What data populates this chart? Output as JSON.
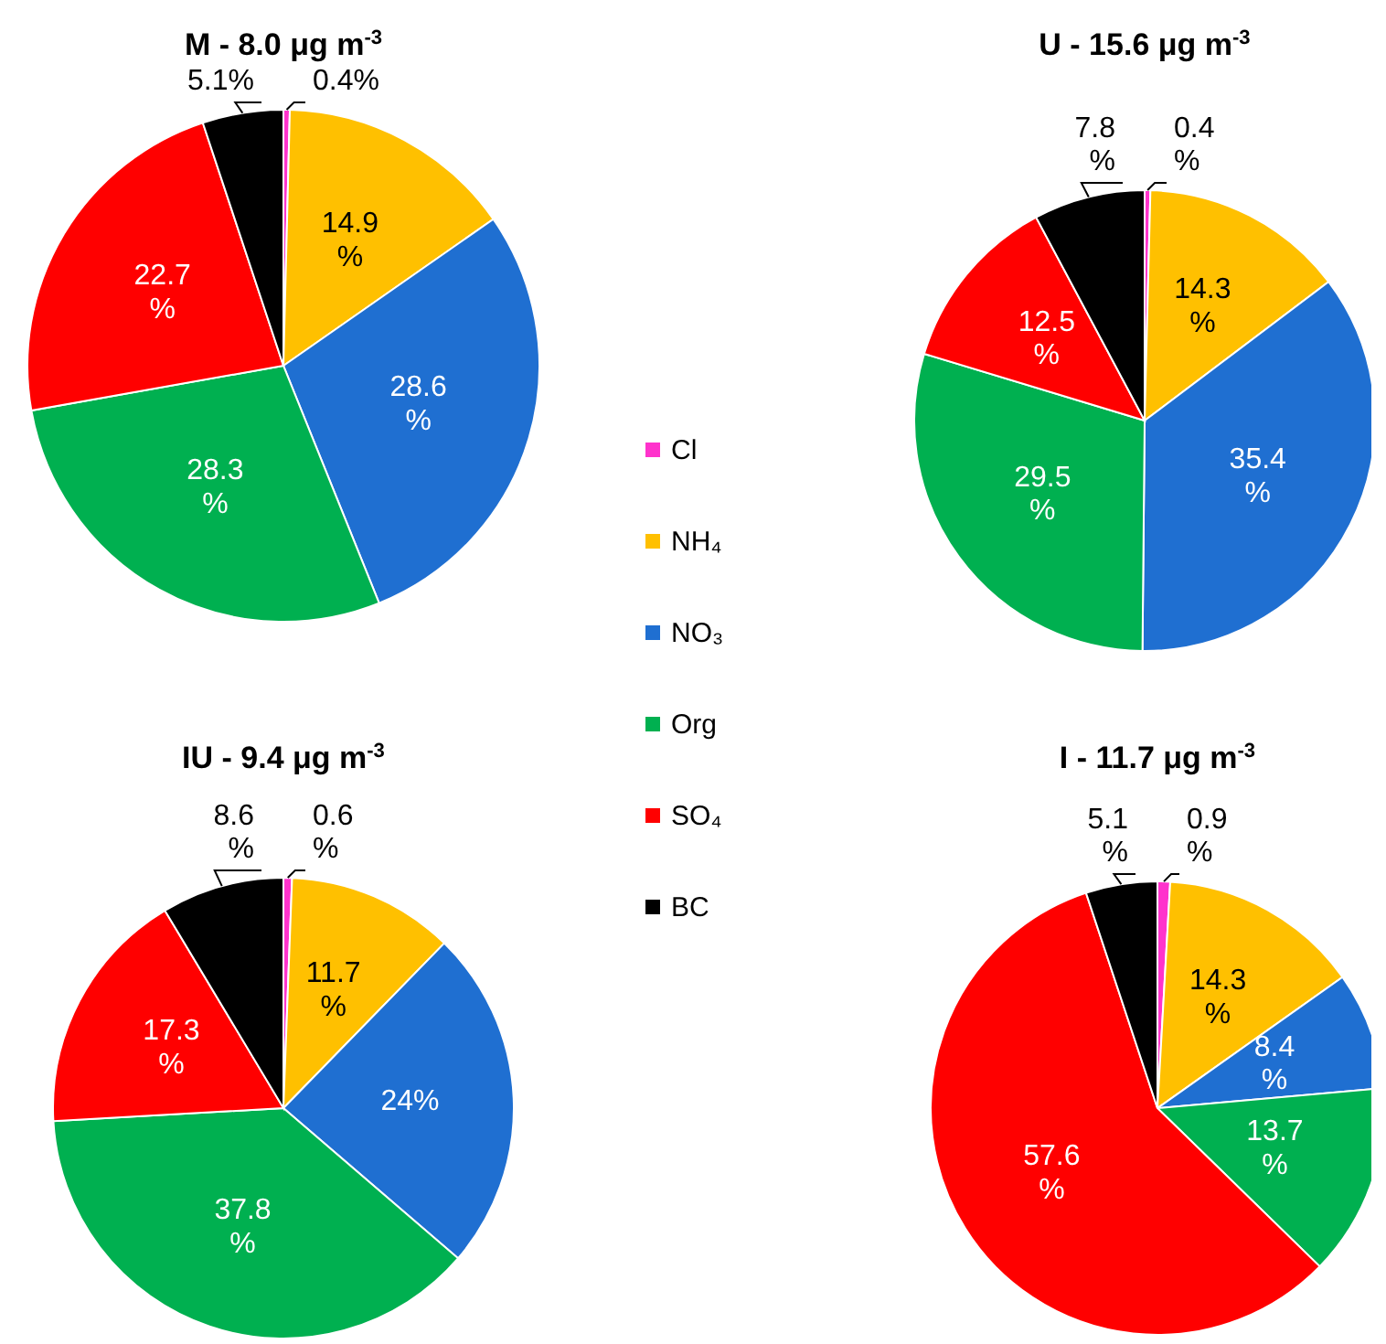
{
  "chart_data": [
    {
      "type": "pie",
      "title": "M - 8.0 μg m$^{-3}$",
      "categories": [
        "Cl",
        "NH₄",
        "NO₃",
        "Org",
        "SO₄",
        "BC"
      ],
      "values": [
        0.4,
        14.9,
        28.6,
        28.3,
        22.7,
        5.1
      ],
      "colors": [
        "#ff33cc",
        "#ffc000",
        "#1f6fd1",
        "#00b050",
        "#ff0000",
        "#000000"
      ],
      "value_labels": [
        "0.4%",
        "14.9 %",
        "28.6 %",
        "28.3 %",
        "22.7 %",
        "5.1%"
      ],
      "legend": "right"
    },
    {
      "type": "pie",
      "title": "U - 15.6 μg m$^{-3}$",
      "categories": [
        null,
        null,
        null,
        null,
        null,
        null
      ],
      "values": [
        0.4,
        14.3,
        35.4,
        29.5,
        12.5,
        7.8
      ],
      "colors": [
        "#ff33cc",
        "#ffc000",
        "#1f6fd1",
        "#00b050",
        "#ff0000",
        "#000000"
      ],
      "value_labels": [
        "0.4 %",
        "14.3 %",
        "35.4 %",
        "29.5 %",
        "12.5 %",
        "7.8 %"
      ]
    },
    {
      "type": "pie",
      "title": "IU - 9.4 μg m$^{-3}$",
      "categories": [
        null,
        null,
        null,
        null,
        null,
        null
      ],
      "values": [
        0.6,
        11.7,
        24,
        37.8,
        17.3,
        8.6
      ],
      "colors": [
        "#ff33cc",
        "#ffc000",
        "#1f6fd1",
        "#00b050",
        "#ff0000",
        "#000000"
      ],
      "value_labels": [
        "0.6 %",
        "11.7 %",
        "24%",
        "37.8 %",
        "17.3 %",
        "8.6 %"
      ]
    },
    {
      "type": "pie",
      "title": "I - 11.7 μg m$^{-3}$",
      "categories": [
        null,
        null,
        null,
        null,
        null,
        null
      ],
      "values": [
        0.9,
        14.3,
        8.4,
        13.7,
        57.6,
        5.1
      ],
      "colors": [
        "#ff33cc",
        "#ffc000",
        "#1f6fd1",
        "#00b050",
        "#ff0000",
        "#000000"
      ],
      "value_labels": [
        "0.9 %",
        "14.3 %",
        "8.4 %",
        "13.7 %",
        "57.6 %",
        "5.1 %"
      ]
    }
  ]
}
